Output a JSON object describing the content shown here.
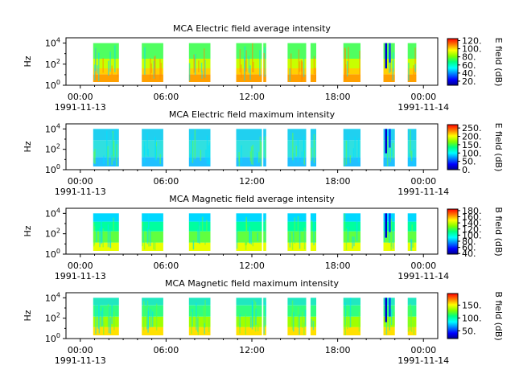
{
  "chart_data": [
    {
      "type": "heatmap",
      "title": "MCA  Electric field average intensity",
      "ylabel": "Hz",
      "colorbar_label": "E field (dB)",
      "colorbar_ticks": [
        "20.",
        "40.",
        "60.",
        "80.",
        "100.",
        "120."
      ],
      "colorbar_range": [
        10,
        125
      ],
      "y_ticks": [
        {
          "base": "10",
          "exp": "0"
        },
        {
          "base": "10",
          "exp": "2"
        },
        {
          "base": "10",
          "exp": "4"
        }
      ],
      "ylim_exp": [
        0,
        4.5
      ],
      "x_ticks": [
        [
          "00:00",
          "1991-11-13"
        ],
        [
          "06:00",
          ""
        ],
        [
          "12:00",
          ""
        ],
        [
          "18:00",
          ""
        ],
        [
          "00:00",
          "1991-11-14"
        ]
      ],
      "xlim_hours": [
        -1,
        25
      ],
      "data_intervals_hours": [
        [
          0.9,
          2.7
        ],
        [
          4.3,
          5.8
        ],
        [
          7.6,
          9.1
        ],
        [
          10.9,
          12.7
        ],
        [
          12.8,
          13.0
        ],
        [
          14.5,
          15.8
        ],
        [
          16.1,
          16.5
        ],
        [
          18.4,
          19.6
        ],
        [
          21.2,
          22.0
        ],
        [
          22.9,
          23.5
        ]
      ]
    },
    {
      "type": "heatmap",
      "title": "MCA  Electric field maximum intensity",
      "ylabel": "Hz",
      "colorbar_label": "E field (dB)",
      "colorbar_ticks": [
        "0.",
        "50.",
        "100.",
        "150.",
        "200.",
        "250."
      ],
      "colorbar_range": [
        0,
        270
      ],
      "y_ticks": [
        {
          "base": "10",
          "exp": "0"
        },
        {
          "base": "10",
          "exp": "2"
        },
        {
          "base": "10",
          "exp": "4"
        }
      ],
      "ylim_exp": [
        0,
        4.5
      ],
      "x_ticks": [
        [
          "00:00",
          "1991-11-13"
        ],
        [
          "06:00",
          ""
        ],
        [
          "12:00",
          ""
        ],
        [
          "18:00",
          ""
        ],
        [
          "00:00",
          "1991-11-14"
        ]
      ],
      "xlim_hours": [
        -1,
        25
      ],
      "data_intervals_hours": [
        [
          0.9,
          2.7
        ],
        [
          4.3,
          5.8
        ],
        [
          7.6,
          9.1
        ],
        [
          10.9,
          12.7
        ],
        [
          12.8,
          13.0
        ],
        [
          14.5,
          15.8
        ],
        [
          16.1,
          16.5
        ],
        [
          18.4,
          19.6
        ],
        [
          21.2,
          22.0
        ],
        [
          22.9,
          23.5
        ]
      ]
    },
    {
      "type": "heatmap",
      "title": "MCA  Magnetic field average intensity",
      "ylabel": "Hz",
      "colorbar_label": "B field (dB)",
      "colorbar_ticks": [
        "40.",
        "60.",
        "80.",
        "100.",
        "120.",
        "140.",
        "160.",
        "180."
      ],
      "colorbar_range": [
        38,
        185
      ],
      "y_ticks": [
        {
          "base": "10",
          "exp": "0"
        },
        {
          "base": "10",
          "exp": "2"
        },
        {
          "base": "10",
          "exp": "4"
        }
      ],
      "ylim_exp": [
        0,
        4.5
      ],
      "x_ticks": [
        [
          "00:00",
          "1991-11-13"
        ],
        [
          "06:00",
          ""
        ],
        [
          "12:00",
          ""
        ],
        [
          "18:00",
          ""
        ],
        [
          "00:00",
          "1991-11-14"
        ]
      ],
      "xlim_hours": [
        -1,
        25
      ],
      "data_intervals_hours": [
        [
          0.9,
          2.7
        ],
        [
          4.3,
          5.8
        ],
        [
          7.6,
          9.1
        ],
        [
          10.9,
          12.7
        ],
        [
          12.8,
          13.0
        ],
        [
          14.5,
          15.8
        ],
        [
          16.1,
          16.5
        ],
        [
          18.4,
          19.6
        ],
        [
          21.2,
          22.0
        ],
        [
          22.9,
          23.5
        ]
      ]
    },
    {
      "type": "heatmap",
      "title": "MCA  Magnetic field maximum intensity",
      "ylabel": "Hz",
      "colorbar_label": "B field (dB)",
      "colorbar_ticks": [
        "50.",
        "100.",
        "150."
      ],
      "colorbar_range": [
        20,
        195
      ],
      "y_ticks": [
        {
          "base": "10",
          "exp": "0"
        },
        {
          "base": "10",
          "exp": "2"
        },
        {
          "base": "10",
          "exp": "4"
        }
      ],
      "ylim_exp": [
        0,
        4.5
      ],
      "x_ticks": [
        [
          "00:00",
          "1991-11-13"
        ],
        [
          "06:00",
          ""
        ],
        [
          "12:00",
          ""
        ],
        [
          "18:00",
          ""
        ],
        [
          "00:00",
          "1991-11-14"
        ]
      ],
      "xlim_hours": [
        -1,
        25
      ],
      "data_intervals_hours": [
        [
          0.9,
          2.7
        ],
        [
          4.3,
          5.8
        ],
        [
          7.6,
          9.1
        ],
        [
          10.9,
          12.7
        ],
        [
          12.8,
          13.0
        ],
        [
          14.5,
          15.8
        ],
        [
          16.1,
          16.5
        ],
        [
          18.4,
          19.6
        ],
        [
          21.2,
          22.0
        ],
        [
          22.9,
          23.5
        ]
      ]
    }
  ]
}
